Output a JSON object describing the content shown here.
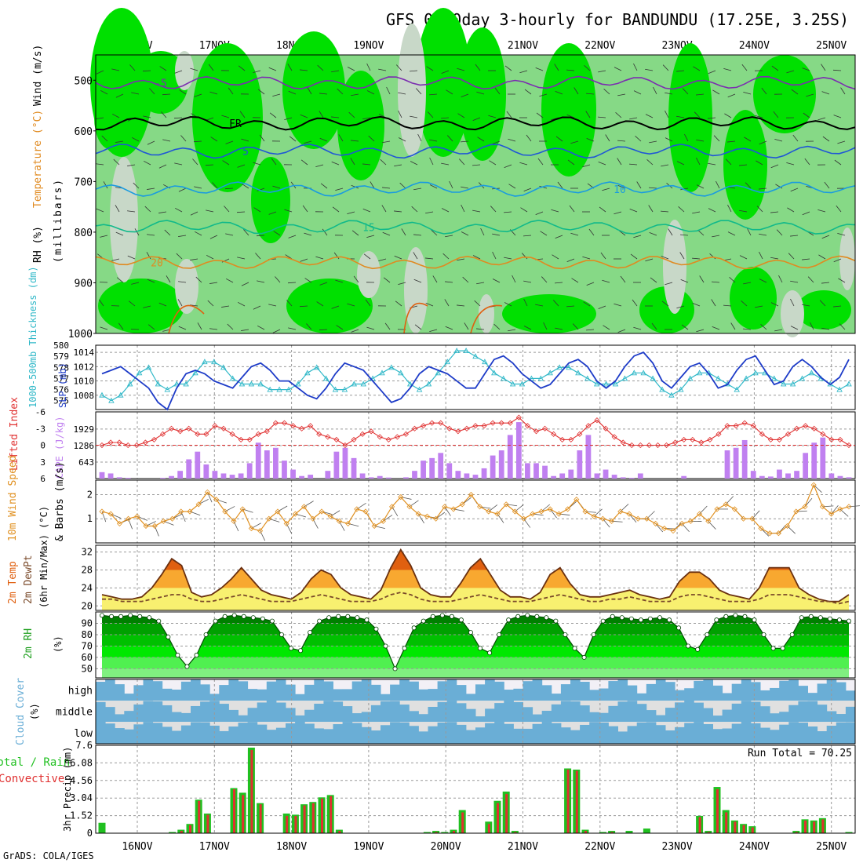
{
  "title": "GFS 0~10day 3-hourly for BANDUNDU (17.25E, 3.25S)",
  "footer": "GrADS: COLA/IGES",
  "dates": [
    "16NOV",
    "17NOV",
    "18NOV",
    "19NOV",
    "20NOV",
    "21NOV",
    "22NOV",
    "23NOV",
    "24NOV",
    "25NOV"
  ],
  "colors": {
    "rh_light": "#86d986",
    "rh_mid": "#00e000",
    "rh_grey": "#c8d8c8",
    "contour_violet": "#7b2db0",
    "contour_blue": "#1f56d6",
    "contour_lblue": "#1a9be0",
    "contour_teal": "#10b98a",
    "contour_orange": "#e08a20",
    "slp": "#1e3cc8",
    "thickness": "#30b8c8",
    "lifted": "#e03030",
    "cape": "#c080f0",
    "wind": "#e09020",
    "temp_max": "#e06010",
    "temp_band": "#f8a830",
    "temp_low": "#f8f070",
    "dewpt": "#7a4a2a",
    "rh_dark": "#008000",
    "cloud_blue": "#6aaed6",
    "cloud_grey": "#e0e0e0",
    "cloud_high_bg": "#f2f0f6",
    "precip_total": "#20c020",
    "precip_conv": "#e03030"
  },
  "panel_labels": {
    "upper": {
      "rh": "RH (%)",
      "temp": "Temperature (°C)",
      "wind": "Wind (m/s)",
      "unit": "(millibars)"
    },
    "slp": {
      "left": "1000-500mb Thickness (dm)",
      "right": "SLP (mb)"
    },
    "cape": {
      "left": "Lifted Index",
      "right": "CAPE (J/kg)"
    },
    "wind10": {
      "left": "10m Wind Speed",
      "right": "& Barbs (m/s)"
    },
    "temp2m": {
      "a": "2m Temp",
      "b": "2m DewPt",
      "c": "(6hr Min/Max) (°C)"
    },
    "rh2m": {
      "a": "2m RH",
      "b": "(%)"
    },
    "cloud": {
      "a": "Cloud Cover",
      "b": "(%)",
      "levels": [
        "high",
        "middle",
        "low"
      ]
    },
    "precip": {
      "a": "Total / Rain",
      "b": "Convective",
      "c": "3hr Precip (mm)",
      "run_total": "Run Total = 70.25"
    }
  },
  "chart_data": [
    {
      "type": "heatmap",
      "name": "upper-air",
      "ylabel": "millibars",
      "ylim": [
        1000,
        450
      ],
      "yticks": [
        500,
        600,
        700,
        800,
        900,
        1000
      ],
      "contours": [
        {
          "label": "-5",
          "level_mb": 505,
          "color": "#7b2db0"
        },
        {
          "label": "FR",
          "level_mb": 585,
          "color": "#000000"
        },
        {
          "label": "5",
          "level_mb": 640,
          "color": "#1f56d6"
        },
        {
          "label": "10",
          "level_mb": 715,
          "color": "#1a9be0"
        },
        {
          "label": "15",
          "level_mb": 790,
          "color": "#10b98a"
        },
        {
          "label": "20",
          "level_mb": 860,
          "color": "#e08a20"
        }
      ]
    },
    {
      "type": "line",
      "name": "slp-thickness",
      "yticks_left": [
        575,
        576,
        577,
        578,
        579,
        580
      ],
      "yticks_right": [
        1008,
        1010,
        1012,
        1014
      ],
      "series": [
        {
          "name": "SLP (mb)",
          "values": [
            1011,
            1011.5,
            1012,
            1011,
            1010,
            1009,
            1007,
            1006,
            1009,
            1011,
            1011.5,
            1011,
            1010,
            1009.5,
            1009,
            1010.5,
            1012,
            1012.5,
            1011.5,
            1010,
            1010,
            1009,
            1008,
            1007.5,
            1009,
            1011,
            1012.5,
            1012,
            1011.5,
            1010,
            1008.5,
            1007,
            1007.5,
            1009,
            1011,
            1012,
            1011.5,
            1011,
            1010,
            1009,
            1009,
            1011,
            1013,
            1013.5,
            1012.5,
            1011,
            1010,
            1009,
            1009.5,
            1011,
            1012.5,
            1013,
            1012,
            1010,
            1009,
            1010,
            1012,
            1013.5,
            1014,
            1012.5,
            1010,
            1009,
            1010.5,
            1012,
            1012.5,
            1011,
            1009,
            1009.5,
            1011.5,
            1013,
            1013.5,
            1011.5,
            1009.5,
            1010,
            1012,
            1013,
            1012,
            1010.5,
            1009.5,
            1010.5,
            1013
          ]
        },
        {
          "name": "1000-500mb Thickness (dm)",
          "values": [
            575.5,
            575,
            575.5,
            576.5,
            577.5,
            578,
            576.5,
            576,
            576.5,
            576.5,
            577.5,
            578.5,
            578.5,
            578,
            577,
            576.5,
            576.5,
            576.5,
            576,
            576,
            576,
            576.5,
            577.5,
            578,
            577,
            576,
            576,
            576.5,
            576.5,
            577,
            577.5,
            578,
            577.5,
            576.5,
            576,
            576.5,
            577.5,
            578.5,
            579.5,
            579.5,
            579,
            578.5,
            577.5,
            577,
            576.5,
            576.5,
            577,
            577,
            577.5,
            578,
            578,
            577.5,
            577,
            576.5,
            576.5,
            576.5,
            577,
            577.5,
            577.5,
            577,
            576,
            575.5,
            576,
            577,
            577.5,
            577.5,
            577,
            576.5,
            576,
            577,
            577.5,
            577.5,
            577,
            576.5,
            576.5,
            577,
            577.5,
            577,
            576.5,
            576,
            576.5
          ]
        }
      ]
    },
    {
      "type": "bar",
      "name": "cape-lifted-index",
      "yticks_left": [
        -6,
        -3,
        0,
        3,
        6
      ],
      "yticks_right": [
        643,
        1286,
        1929
      ],
      "series": [
        {
          "name": "CAPE (J/kg)",
          "values": [
            250,
            200,
            50,
            30,
            0,
            0,
            0,
            30,
            100,
            300,
            750,
            1050,
            550,
            300,
            200,
            150,
            200,
            600,
            1400,
            1100,
            1200,
            700,
            350,
            100,
            150,
            0,
            300,
            1050,
            1200,
            800,
            200,
            50,
            100,
            40,
            0,
            50,
            300,
            700,
            800,
            1000,
            600,
            300,
            200,
            150,
            400,
            900,
            1100,
            1700,
            2200,
            600,
            600,
            500,
            100,
            200,
            350,
            1100,
            1700,
            200,
            350,
            150,
            50,
            30,
            200,
            0,
            0,
            0,
            0,
            100,
            0,
            0,
            0,
            0,
            1100,
            1200,
            1500,
            300,
            100,
            80,
            350,
            200,
            300,
            1000,
            1400,
            1600,
            200,
            100,
            50
          ]
        },
        {
          "name": "Lifted Index",
          "values": [
            0,
            -0.5,
            -0.5,
            0,
            0,
            -0.5,
            -1,
            -2,
            -3,
            -2.5,
            -3,
            -2,
            -2,
            -3.5,
            -3,
            -2,
            -1,
            -1,
            -2,
            -2.5,
            -4,
            -4,
            -3.5,
            -3,
            -3.5,
            -2,
            -1.5,
            -1,
            0,
            -1,
            -2,
            -2.5,
            -1.5,
            -1,
            -1.5,
            -2,
            -3,
            -3.5,
            -4,
            -4,
            -3,
            -2.5,
            -3,
            -3.5,
            -3.5,
            -4,
            -4,
            -4,
            -5,
            -3.5,
            -2.5,
            -3,
            -2,
            -1,
            -1,
            -2,
            -3.5,
            -4.5,
            -3,
            -1.5,
            -0.5,
            0,
            0,
            0,
            0,
            0,
            -0.5,
            -1,
            -1,
            -0.5,
            -1,
            -2,
            -3.5,
            -3.5,
            -4,
            -3.5,
            -2,
            -1,
            -1,
            -2,
            -3,
            -3.5,
            -3,
            -2,
            -1,
            -1,
            0
          ]
        }
      ]
    },
    {
      "type": "line",
      "name": "10m-wind",
      "yticks": [
        1,
        2
      ],
      "series": [
        {
          "name": "10m Wind Speed (m/s)",
          "values": [
            1.3,
            1.2,
            0.8,
            1.0,
            1.1,
            0.7,
            0.7,
            0.9,
            1.0,
            1.3,
            1.3,
            1.6,
            2.1,
            1.8,
            1.3,
            0.9,
            1.4,
            0.6,
            0.5,
            1.0,
            1.3,
            0.8,
            1.2,
            1.5,
            1.0,
            1.3,
            1.1,
            0.9,
            0.8,
            1.4,
            1.3,
            0.7,
            0.9,
            1.5,
            1.9,
            1.5,
            1.2,
            1.1,
            1.0,
            1.5,
            1.4,
            1.6,
            2.0,
            1.5,
            1.3,
            1.2,
            1.6,
            1.3,
            1.0,
            1.2,
            1.3,
            1.4,
            1.2,
            1.4,
            1.8,
            1.3,
            1.1,
            1.0,
            0.9,
            1.3,
            1.2,
            1.0,
            1.0,
            0.8,
            0.6,
            0.5,
            0.8,
            0.9,
            1.2,
            0.9,
            1.4,
            1.6,
            1.4,
            1.0,
            1.0,
            0.6,
            0.4,
            0.4,
            0.7,
            1.3,
            1.5,
            2.4,
            1.5,
            1.2,
            1.4,
            1.5
          ]
        }
      ]
    },
    {
      "type": "area",
      "name": "2m-temperature",
      "yticks": [
        20,
        24,
        28,
        32
      ],
      "series": [
        {
          "name": "2m Temp (°C)",
          "values": [
            22.5,
            22,
            21.5,
            21.5,
            22,
            24,
            27,
            30.5,
            29,
            23,
            22,
            22.5,
            24,
            26,
            28.5,
            26,
            23.5,
            22.5,
            22,
            21.5,
            23,
            26,
            28,
            27,
            24,
            22.5,
            22,
            21.5,
            23.5,
            28.5,
            32.5,
            29,
            24,
            22.5,
            22,
            22,
            25,
            28.5,
            30.5,
            27,
            23.5,
            22,
            22,
            21.5,
            23,
            27,
            28.5,
            25,
            22.5,
            22,
            22,
            22.5,
            23,
            23.5,
            22.5,
            22,
            21.5,
            22,
            25.5,
            27.5,
            27.5,
            26,
            23.5,
            22.5,
            22,
            21.5,
            24,
            28.5,
            28.5,
            28.5,
            24,
            22.5,
            21.5,
            21,
            21,
            22.5
          ]
        },
        {
          "name": "2m DewPt (°C)",
          "values": [
            21.5,
            21.5,
            21,
            21,
            21,
            21.5,
            22,
            22.5,
            22.5,
            21.5,
            21,
            21,
            21.5,
            22,
            22.5,
            22,
            21.5,
            21,
            21,
            21,
            21.5,
            22,
            22.5,
            22,
            21.5,
            21,
            21,
            21,
            21.5,
            22.5,
            23,
            22.5,
            21.5,
            21,
            21,
            21,
            21.5,
            22,
            22.5,
            22,
            21.5,
            21,
            21,
            21,
            21.5,
            22,
            22.5,
            22,
            21.5,
            21,
            21,
            21.5,
            21.5,
            22,
            21.5,
            21,
            21,
            21,
            22,
            22.5,
            22.5,
            22,
            21.5,
            21,
            21,
            21,
            21.5,
            22.5,
            22.5,
            22.5,
            22,
            21.5,
            21,
            21,
            20.5,
            21
          ]
        }
      ]
    },
    {
      "type": "area",
      "name": "2m-rh",
      "yticks": [
        50,
        60,
        70,
        80,
        90
      ],
      "series": [
        {
          "name": "2m RH (%)",
          "values": [
            97,
            96,
            96,
            97,
            96,
            95,
            92,
            78,
            62,
            52,
            62,
            80,
            92,
            96,
            97,
            96,
            95,
            94,
            92,
            80,
            68,
            66,
            82,
            92,
            95,
            96,
            96,
            95,
            93,
            85,
            70,
            50,
            68,
            86,
            92,
            96,
            97,
            96,
            93,
            82,
            68,
            64,
            80,
            93,
            96,
            97,
            96,
            95,
            92,
            80,
            68,
            60,
            80,
            92,
            96,
            95,
            94,
            93,
            94,
            95,
            93,
            86,
            70,
            67,
            80,
            93,
            96,
            97,
            96,
            93,
            80,
            68,
            68,
            80,
            95,
            96,
            95,
            94,
            93,
            92
          ]
        }
      ]
    },
    {
      "type": "bar",
      "name": "cloud-cover",
      "categories": [
        "high",
        "middle",
        "low"
      ]
    },
    {
      "type": "bar",
      "name": "3hr-precip",
      "yticks": [
        0,
        1.52,
        3.04,
        4.56,
        6.08,
        7.6
      ],
      "ylabel": "3hr Precip (mm)",
      "series": [
        {
          "name": "Total / Rain (mm)",
          "values": [
            0.9,
            0,
            0,
            0,
            0,
            0,
            0,
            0,
            0.1,
            0.3,
            0.8,
            2.9,
            1.7,
            0,
            0,
            3.9,
            3.5,
            7.4,
            2.6,
            0,
            0,
            1.7,
            1.6,
            2.5,
            2.7,
            3.1,
            3.3,
            0.3,
            0,
            0,
            0,
            0,
            0,
            0,
            0,
            0,
            0,
            0.1,
            0.2,
            0.1,
            0.3,
            2.0,
            0,
            0,
            1.0,
            2.8,
            3.6,
            0.2,
            0,
            0,
            0,
            0,
            0,
            5.6,
            5.5,
            0.3,
            0,
            0.1,
            0.2,
            0,
            0.2,
            0,
            0.4,
            0,
            0,
            0,
            0,
            0,
            1.5,
            0.2,
            4.0,
            2.0,
            1.1,
            0.8,
            0.6,
            0,
            0,
            0,
            0,
            0.2,
            1.2,
            1.1,
            1.3,
            0,
            0,
            0.1
          ]
        },
        {
          "name": "Convective (mm)",
          "values": [
            0,
            0,
            0,
            0,
            0,
            0,
            0,
            0,
            0,
            0.2,
            0.7,
            2.8,
            1.6,
            0,
            0,
            3.8,
            3.3,
            7.2,
            2.5,
            0,
            0,
            1.5,
            1.5,
            2.4,
            2.6,
            3.0,
            3.2,
            0.2,
            0,
            0,
            0,
            0,
            0,
            0,
            0,
            0,
            0,
            0,
            0.1,
            0,
            0.2,
            1.8,
            0,
            0,
            0.8,
            2.6,
            3.4,
            0.1,
            0,
            0,
            0,
            0,
            0,
            5.5,
            5.4,
            0.2,
            0,
            0,
            0.1,
            0,
            0,
            0,
            0,
            0,
            0,
            0,
            0,
            0,
            1.4,
            0.1,
            3.8,
            1.8,
            1.0,
            0.7,
            0.5,
            0,
            0,
            0,
            0,
            0.1,
            1.1,
            1.0,
            1.2,
            0,
            0,
            0
          ]
        }
      ]
    }
  ]
}
